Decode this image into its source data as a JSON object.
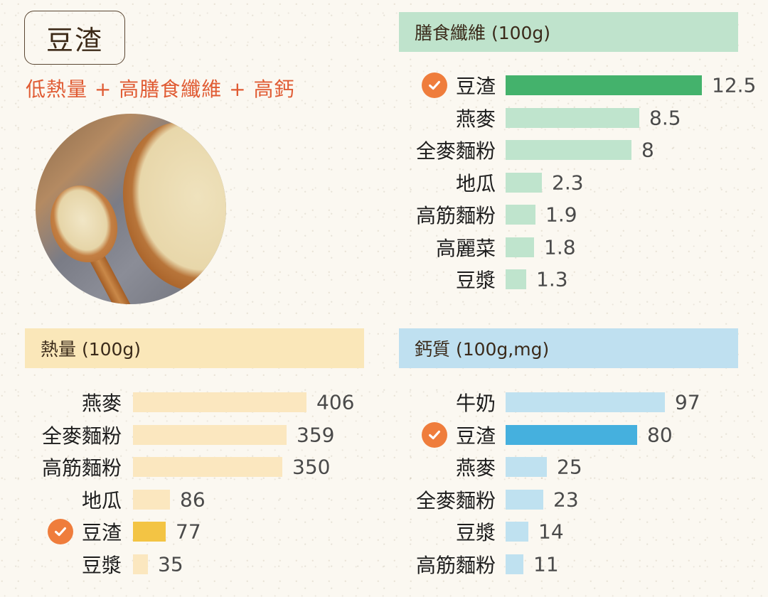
{
  "title": "豆渣",
  "subtitle": "低熱量 + 高膳食纖維 + 高鈣",
  "photo_alt": "okara in wooden bowl and spoon",
  "colors": {
    "title_text": "#3d2a18",
    "subtitle_text": "#e05b33",
    "check_icon": "#ef7d3c",
    "fiber_header": "#bfe3cc",
    "fiber_bar": "#bfe4cd",
    "fiber_highlight": "#44b26c",
    "calorie_header": "#fae7b9",
    "calorie_bar": "#fbe7bf",
    "calorie_highlight": "#f3c444",
    "calcium_header": "#bfe0f0",
    "calcium_bar": "#bfe1f0",
    "calcium_highlight": "#45b0de"
  },
  "chart_data": [
    {
      "type": "bar",
      "orientation": "horizontal",
      "title": "膳食纖維 (100g)",
      "categories": [
        "豆渣",
        "燕麥",
        "全麥麵粉",
        "地瓜",
        "高筋麵粉",
        "高麗菜",
        "豆漿"
      ],
      "values": [
        12.5,
        8.5,
        8,
        2.3,
        1.9,
        1.8,
        1.3
      ],
      "value_labels": [
        "12.5",
        "8.5",
        "8",
        "2.3",
        "1.9",
        "1.8",
        "1.3"
      ],
      "highlight": "豆渣",
      "xlabel": "",
      "ylabel": "",
      "grid": false,
      "legend": "none"
    },
    {
      "type": "bar",
      "orientation": "horizontal",
      "title": "熱量 (100g)",
      "categories": [
        "燕麥",
        "全麥麵粉",
        "高筋麵粉",
        "地瓜",
        "豆渣",
        "豆漿"
      ],
      "values": [
        406,
        359,
        350,
        86,
        77,
        35
      ],
      "value_labels": [
        "406",
        "359",
        "350",
        "86",
        "77",
        "35"
      ],
      "highlight": "豆渣",
      "xlabel": "",
      "ylabel": "",
      "grid": false,
      "legend": "none"
    },
    {
      "type": "bar",
      "orientation": "horizontal",
      "title": "鈣質 (100g,mg)",
      "categories": [
        "牛奶",
        "豆渣",
        "燕麥",
        "全麥麵粉",
        "豆漿",
        "高筋麵粉"
      ],
      "values": [
        97,
        80,
        25,
        23,
        14,
        11
      ],
      "value_labels": [
        "97",
        "80",
        "25",
        "23",
        "14",
        "11"
      ],
      "highlight": "豆渣",
      "xlabel": "",
      "ylabel": "",
      "grid": false,
      "legend": "none"
    }
  ]
}
